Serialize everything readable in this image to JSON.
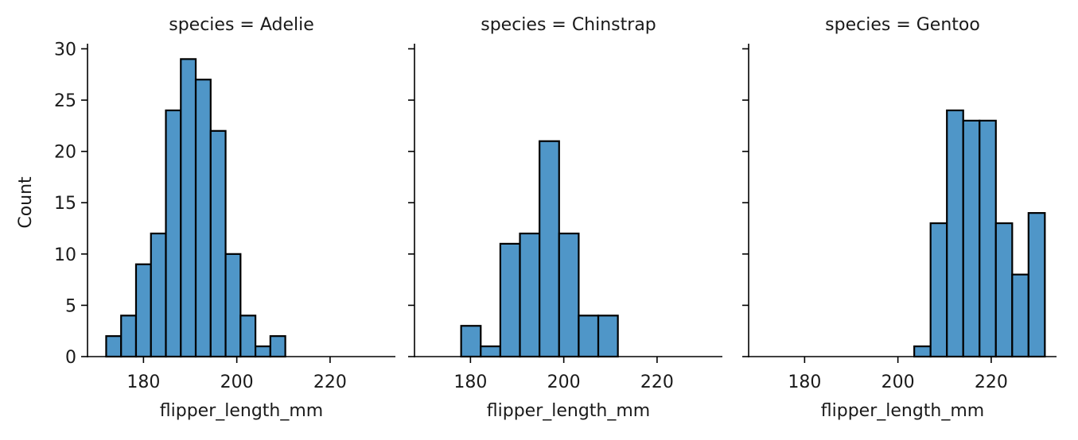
{
  "chart_data": {
    "type": "bar",
    "layout": "facet-grid",
    "ylabel": "Count",
    "ylim": [
      0,
      30.5
    ],
    "yticks": [
      0,
      5,
      10,
      15,
      20,
      25,
      30
    ],
    "xlim": [
      168,
      234
    ],
    "xticks": [
      180,
      200,
      220
    ],
    "colors": {
      "bar_fill": "#4f96c8",
      "bar_edge": "#000000"
    },
    "panels": [
      {
        "title": "species = Adelie",
        "xlabel": "flipper_length_mm",
        "bins": [
          {
            "x0": 172.0,
            "x1": 175.2,
            "count": 2
          },
          {
            "x0": 175.2,
            "x1": 178.4,
            "count": 4
          },
          {
            "x0": 178.4,
            "x1": 181.6,
            "count": 9
          },
          {
            "x0": 181.6,
            "x1": 184.8,
            "count": 12
          },
          {
            "x0": 184.8,
            "x1": 188.0,
            "count": 24
          },
          {
            "x0": 188.0,
            "x1": 191.2,
            "count": 29
          },
          {
            "x0": 191.2,
            "x1": 194.4,
            "count": 27
          },
          {
            "x0": 194.4,
            "x1": 197.6,
            "count": 22
          },
          {
            "x0": 197.6,
            "x1": 200.8,
            "count": 10
          },
          {
            "x0": 200.8,
            "x1": 204.0,
            "count": 4
          },
          {
            "x0": 204.0,
            "x1": 207.2,
            "count": 1
          },
          {
            "x0": 207.2,
            "x1": 210.4,
            "count": 2
          }
        ]
      },
      {
        "title": "species = Chinstrap",
        "xlabel": "flipper_length_mm",
        "bins": [
          {
            "x0": 178.0,
            "x1": 182.2,
            "count": 3
          },
          {
            "x0": 182.2,
            "x1": 186.4,
            "count": 1
          },
          {
            "x0": 186.4,
            "x1": 190.6,
            "count": 11
          },
          {
            "x0": 190.6,
            "x1": 194.8,
            "count": 12
          },
          {
            "x0": 194.8,
            "x1": 199.0,
            "count": 21
          },
          {
            "x0": 199.0,
            "x1": 203.2,
            "count": 12
          },
          {
            "x0": 203.2,
            "x1": 207.4,
            "count": 4
          },
          {
            "x0": 207.4,
            "x1": 211.6,
            "count": 4
          }
        ]
      },
      {
        "title": "species = Gentoo",
        "xlabel": "flipper_length_mm",
        "bins": [
          {
            "x0": 203.5,
            "x1": 207.0,
            "count": 1
          },
          {
            "x0": 207.0,
            "x1": 210.5,
            "count": 13
          },
          {
            "x0": 210.5,
            "x1": 214.0,
            "count": 24
          },
          {
            "x0": 214.0,
            "x1": 217.5,
            "count": 23
          },
          {
            "x0": 217.5,
            "x1": 221.0,
            "count": 23
          },
          {
            "x0": 221.0,
            "x1": 224.5,
            "count": 13
          },
          {
            "x0": 224.5,
            "x1": 228.0,
            "count": 8
          },
          {
            "x0": 228.0,
            "x1": 231.5,
            "count": 14
          }
        ]
      }
    ]
  }
}
